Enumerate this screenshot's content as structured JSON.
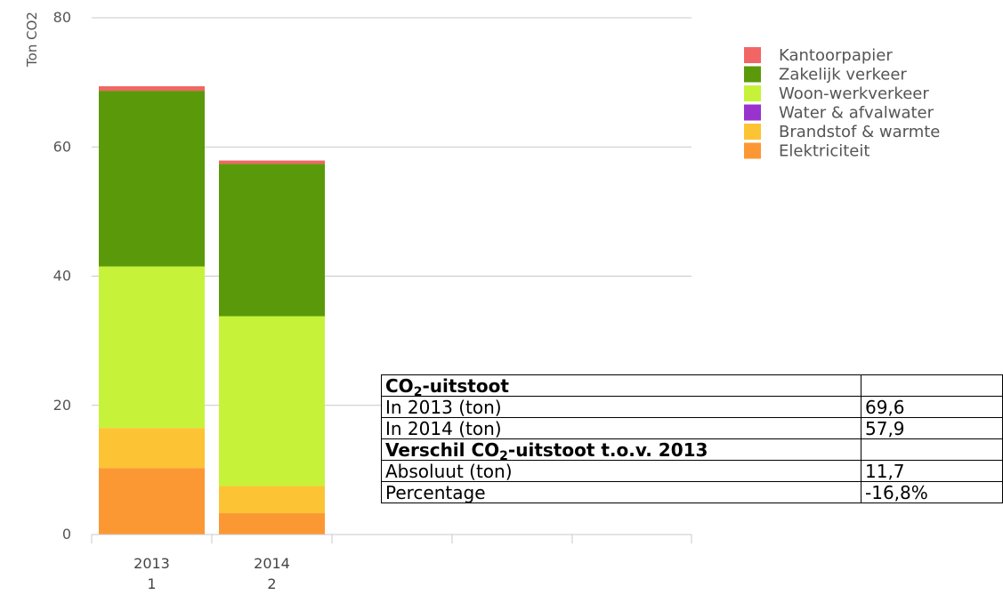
{
  "chart_data": {
    "type": "bar",
    "stacked": true,
    "categories": [
      "2013",
      "2014"
    ],
    "sub_categories": [
      "1",
      "2"
    ],
    "ylabel": "Ton CO2",
    "ylim": [
      0,
      80
    ],
    "yticks": [
      "0",
      "20",
      "40",
      "60",
      "80"
    ],
    "grid": true,
    "legend_position": "top-right",
    "series": [
      {
        "name": "Elektriciteit",
        "color": "#fb9834",
        "values": [
          10.3,
          3.3
        ]
      },
      {
        "name": "Brandstof & warmte",
        "color": "#fcc434",
        "values": [
          6.2,
          4.2
        ]
      },
      {
        "name": "Water & afvalwater",
        "color": "#9a32cd",
        "values": [
          0,
          0
        ]
      },
      {
        "name": "Woon-werkverkeer",
        "color": "#c7f23a",
        "values": [
          25.0,
          26.3
        ]
      },
      {
        "name": "Zakelijk verkeer",
        "color": "#5a9a0a",
        "values": [
          27.2,
          23.6
        ]
      },
      {
        "name": "Kantoorpapier",
        "color": "#f26565",
        "values": [
          0.7,
          0.5
        ]
      }
    ],
    "legend_order": [
      "Kantoorpapier",
      "Zakelijk verkeer",
      "Woon-werkverkeer",
      "Water & afvalwater",
      "Brandstof & warmte",
      "Elektriciteit"
    ]
  },
  "table": {
    "header1_prefix": "CO",
    "header1_sub": "2",
    "header1_suffix": "-uitstoot",
    "row1_label": "In 2013 (ton)",
    "row1_value": "69,6",
    "row2_label": "In 2014 (ton)",
    "row2_value": "57,9",
    "header2_prefix": "Verschil CO",
    "header2_sub": "2",
    "header2_suffix": "-uitstoot t.o.v. 2013",
    "row3_label": "Absoluut (ton)",
    "row3_value": "11,7",
    "row4_label": "Percentage",
    "row4_value": "-16,8%"
  }
}
